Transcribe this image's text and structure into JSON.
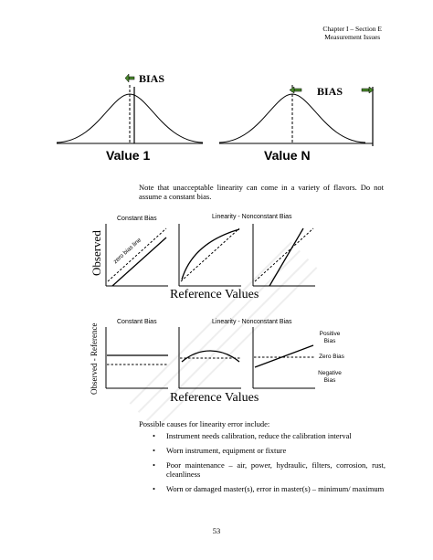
{
  "header": {
    "line1": "Chapter I – Section E",
    "line2": "Measurement Issues"
  },
  "bias_figure": {
    "bias_label_1": "BIAS",
    "bias_label_2": "BIAS",
    "value1_label": "Value 1",
    "valueN_label": "Value N"
  },
  "note": "Note that unacceptable linearity can come in a variety of flavors. Do not assume a constant bias.",
  "row1": {
    "ylabel": "Observed",
    "xlabel": "Reference Values",
    "panel1_title": "Constant Bias",
    "panel2_title": "Linearity - Nonconstant Bias",
    "zero_bias_line": "zero bias line"
  },
  "row2": {
    "ylabel": "Observed - Reference",
    "xlabel": "Reference Values",
    "panel1_title": "Constant Bias",
    "panel2_title": "Linearity - Nonconstant Bias",
    "positive_bias": "Positive Bias",
    "zero_bias": "Zero Bias",
    "negative_bias": "Negative Bias"
  },
  "causes": {
    "intro": "Possible causes for linearity error include:",
    "items": [
      "Instrument needs calibration, reduce the calibration interval",
      "Worn instrument, equipment or fixture",
      "Poor maintenance – air, power, hydraulic, filters, corrosion, rust, cleanliness",
      "Worn or damaged master(s), error in master(s) – minimum/ maximum"
    ]
  },
  "page_number": "53"
}
